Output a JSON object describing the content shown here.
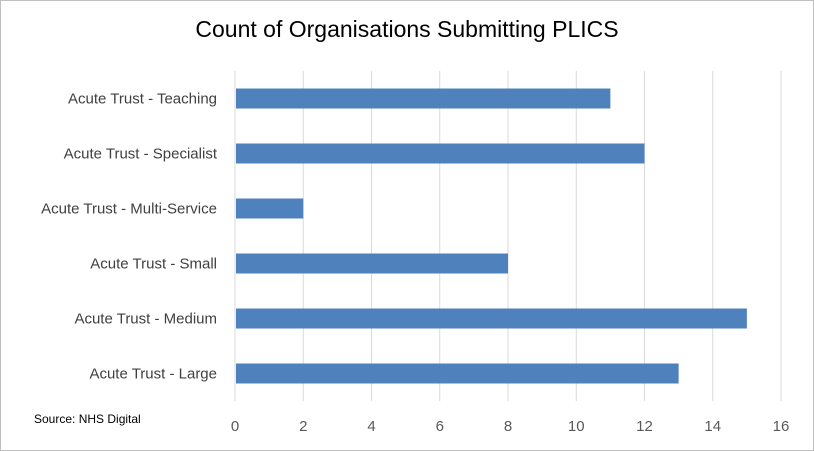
{
  "chart_data": {
    "type": "bar",
    "orientation": "horizontal",
    "title": "Count of Organisations Submitting PLICS",
    "categories": [
      "Acute Trust - Teaching",
      "Acute Trust - Specialist",
      "Acute Trust - Multi-Service",
      "Acute Trust - Small",
      "Acute Trust - Medium",
      "Acute Trust - Large"
    ],
    "values": [
      11,
      12,
      2,
      8,
      15,
      13
    ],
    "xlim": [
      0,
      16
    ],
    "x_ticks": [
      "0",
      "2",
      "4",
      "6",
      "8",
      "10",
      "12",
      "14",
      "16"
    ],
    "grid": true,
    "bar_color": "#4f81bd",
    "grid_color": "#d9d9d9"
  },
  "source_note": "Source: NHS Digital"
}
